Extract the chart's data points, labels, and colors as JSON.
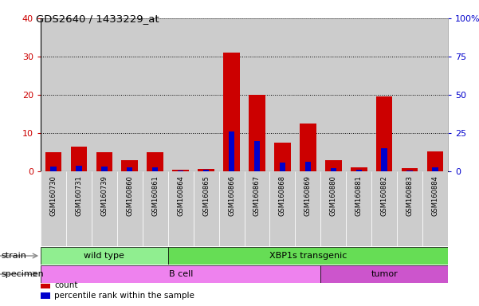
{
  "title": "GDS2640 / 1433229_at",
  "samples": [
    "GSM160730",
    "GSM160731",
    "GSM160739",
    "GSM160860",
    "GSM160861",
    "GSM160864",
    "GSM160865",
    "GSM160866",
    "GSM160867",
    "GSM160868",
    "GSM160869",
    "GSM160880",
    "GSM160881",
    "GSM160882",
    "GSM160883",
    "GSM160884"
  ],
  "count_values": [
    5,
    6.5,
    5,
    3,
    5,
    0.5,
    0.7,
    31,
    20,
    7.5,
    12.5,
    3,
    1,
    19.5,
    0.8,
    5.2
  ],
  "percentile_values": [
    1.2,
    1.5,
    1.3,
    1.0,
    1.0,
    0.3,
    0.4,
    10.5,
    8.0,
    2.2,
    2.5,
    0.8,
    0.5,
    6.0,
    0.3,
    1.0
  ],
  "left_ylim": [
    0,
    40
  ],
  "right_ylim": [
    0,
    100
  ],
  "left_yticks": [
    0,
    10,
    20,
    30,
    40
  ],
  "right_yticks": [
    0,
    25,
    50,
    75,
    100
  ],
  "right_yticklabels": [
    "0",
    "25",
    "50",
    "75",
    "100%"
  ],
  "strain_groups": [
    {
      "label": "wild type",
      "start": 0,
      "end": 5,
      "color": "#90ee90"
    },
    {
      "label": "XBP1s transgenic",
      "start": 5,
      "end": 16,
      "color": "#66dd55"
    }
  ],
  "specimen_groups": [
    {
      "label": "B cell",
      "start": 0,
      "end": 11,
      "color": "#ee82ee"
    },
    {
      "label": "tumor",
      "start": 11,
      "end": 16,
      "color": "#cc55cc"
    }
  ],
  "count_color": "#cc0000",
  "percentile_color": "#0000cc",
  "bg_color": "#cccccc",
  "bar_width": 0.65,
  "legend_items": [
    {
      "label": "count",
      "color": "#cc0000"
    },
    {
      "label": "percentile rank within the sample",
      "color": "#0000cc"
    }
  ],
  "strain_label": "strain",
  "specimen_label": "specimen",
  "left_tick_color": "#cc0000",
  "right_tick_color": "#0000cc"
}
